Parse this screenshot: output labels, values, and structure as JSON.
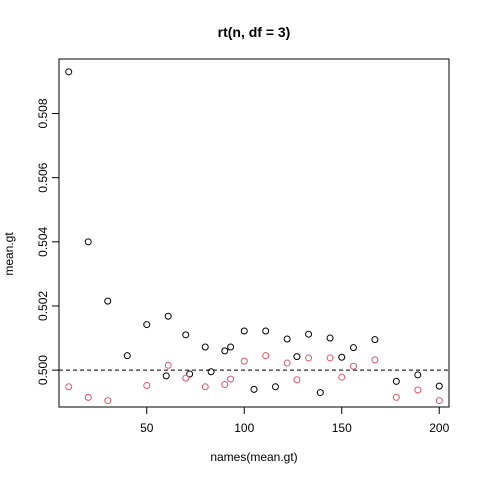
{
  "chart_data": {
    "type": "scatter",
    "title": "rt(n, df = 3)",
    "xlabel": "names(mean.gt)",
    "ylabel": "mean.gt",
    "xlim": [
      5,
      205
    ],
    "ylim": [
      0.49885,
      0.5097
    ],
    "x_ticks": [
      50,
      100,
      150,
      200
    ],
    "y_ticks": [
      0.5,
      0.502,
      0.504,
      0.506,
      0.508
    ],
    "x_tick_labels": [
      "50",
      "100",
      "150",
      "200"
    ],
    "y_tick_labels": [
      "0.500",
      "0.502",
      "0.504",
      "0.506",
      "0.508"
    ],
    "reference_line": {
      "y": 0.5,
      "style": "dashed"
    },
    "grid": false,
    "series": [
      {
        "color": "#000000",
        "points": [
          {
            "x": 10,
            "y": 0.5093
          },
          {
            "x": 20,
            "y": 0.504
          },
          {
            "x": 30,
            "y": 0.50215
          },
          {
            "x": 40,
            "y": 0.50045
          },
          {
            "x": 50,
            "y": 0.50142
          },
          {
            "x": 60,
            "y": 0.49982
          },
          {
            "x": 61,
            "y": 0.50168
          },
          {
            "x": 70,
            "y": 0.5011
          },
          {
            "x": 72,
            "y": 0.49988
          },
          {
            "x": 80,
            "y": 0.50072
          },
          {
            "x": 83,
            "y": 0.49995
          },
          {
            "x": 90,
            "y": 0.5006
          },
          {
            "x": 93,
            "y": 0.50072
          },
          {
            "x": 100,
            "y": 0.50122
          },
          {
            "x": 105,
            "y": 0.4994
          },
          {
            "x": 111,
            "y": 0.50122
          },
          {
            "x": 116,
            "y": 0.49948
          },
          {
            "x": 122,
            "y": 0.50097
          },
          {
            "x": 127,
            "y": 0.50042
          },
          {
            "x": 133,
            "y": 0.50112
          },
          {
            "x": 139,
            "y": 0.4993
          },
          {
            "x": 144,
            "y": 0.501
          },
          {
            "x": 150,
            "y": 0.5004
          },
          {
            "x": 156,
            "y": 0.5007
          },
          {
            "x": 167,
            "y": 0.50095
          },
          {
            "x": 178,
            "y": 0.49965
          },
          {
            "x": 189,
            "y": 0.49985
          },
          {
            "x": 200,
            "y": 0.4995
          }
        ]
      },
      {
        "color": "#DF536B",
        "points": [
          {
            "x": 10,
            "y": 0.49948
          },
          {
            "x": 20,
            "y": 0.49915
          },
          {
            "x": 30,
            "y": 0.49905
          },
          {
            "x": 50,
            "y": 0.49952
          },
          {
            "x": 61,
            "y": 0.50015
          },
          {
            "x": 70,
            "y": 0.49975
          },
          {
            "x": 80,
            "y": 0.49948
          },
          {
            "x": 90,
            "y": 0.49955
          },
          {
            "x": 93,
            "y": 0.49972
          },
          {
            "x": 100,
            "y": 0.50028
          },
          {
            "x": 111,
            "y": 0.50045
          },
          {
            "x": 122,
            "y": 0.50022
          },
          {
            "x": 127,
            "y": 0.4997
          },
          {
            "x": 133,
            "y": 0.50038
          },
          {
            "x": 144,
            "y": 0.50038
          },
          {
            "x": 150,
            "y": 0.49978
          },
          {
            "x": 156,
            "y": 0.50012
          },
          {
            "x": 167,
            "y": 0.50032
          },
          {
            "x": 178,
            "y": 0.49915
          },
          {
            "x": 189,
            "y": 0.49938
          },
          {
            "x": 200,
            "y": 0.49905
          }
        ]
      }
    ]
  }
}
